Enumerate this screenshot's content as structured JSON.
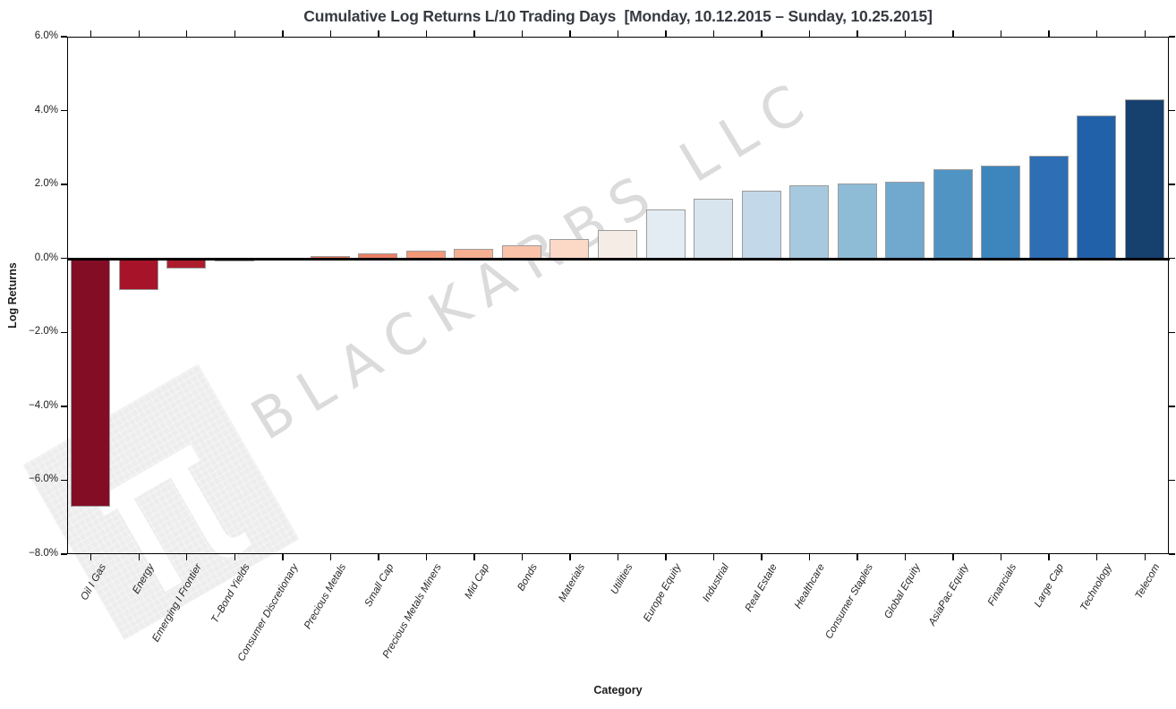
{
  "title": "Cumulative Log Returns L/10 Trading Days  [Monday, 10.12.2015 – Sunday, 10.25.2015]",
  "watermark": {
    "text": "BLACKARBS LLC",
    "pi_symbol": "π"
  },
  "axes": {
    "ylabel": "Log Returns",
    "xlabel": "Category",
    "ytick_labels": [
      "6.0%",
      "4.0%",
      "2.0%",
      "0.0%",
      "−2.0%",
      "−4.0%",
      "−6.0%",
      "−8.0%"
    ],
    "ytick_values": [
      6,
      4,
      2,
      0,
      -2,
      -4,
      -6,
      -8
    ]
  },
  "chart_data": {
    "type": "bar",
    "title": "Cumulative Log Returns L/10 Trading Days  [Monday, 10.12.2015 – Sunday, 10.25.2015]",
    "xlabel": "Category",
    "ylabel": "Log Returns",
    "ylim": [
      -8,
      6
    ],
    "grid": false,
    "legend": "none",
    "unit": "percent",
    "zero_line": true,
    "categories": [
      "Oil I Gas",
      "Energy",
      "Emerging I Frontier",
      "T–Bond Yields",
      "Consumer Discretionary",
      "Precious Metals",
      "Small Cap",
      "Precious Metals Miners",
      "Mid Cap",
      "Bonds",
      "Materials",
      "Utilities",
      "Europe Equity",
      "Industrial",
      "Real Estate",
      "Healthcare",
      "Consumer Staples",
      "Global Equity",
      "AsiaPac Equity",
      "Financials",
      "Large Cap",
      "Technology",
      "Telecom"
    ],
    "values": [
      -6.7,
      -0.82,
      -0.24,
      -0.02,
      0.02,
      0.1,
      0.16,
      0.23,
      0.28,
      0.37,
      0.56,
      0.79,
      1.36,
      1.63,
      1.87,
      2.0,
      2.05,
      2.11,
      2.45,
      2.54,
      2.81,
      3.89,
      4.33
    ],
    "bar_colors": [
      "#840d26",
      "#a71429",
      "#ad1c2d",
      "#f6efec",
      "#f7f2ef",
      "#e7745b",
      "#ea8064",
      "#f29877",
      "#f7af91",
      "#f9c2a9",
      "#fbd9c6",
      "#f6ece6",
      "#e3ecf3",
      "#d8e5ee",
      "#c3d8e9",
      "#a7c9df",
      "#8ebcd7",
      "#70a8ce",
      "#5094c4",
      "#3d85bd",
      "#2d6eb4",
      "#2161a9",
      "#16406e"
    ],
    "bar_edge_color": "#9c9c9c",
    "zero_line_color": "#000000",
    "spine_color": "#000000"
  }
}
